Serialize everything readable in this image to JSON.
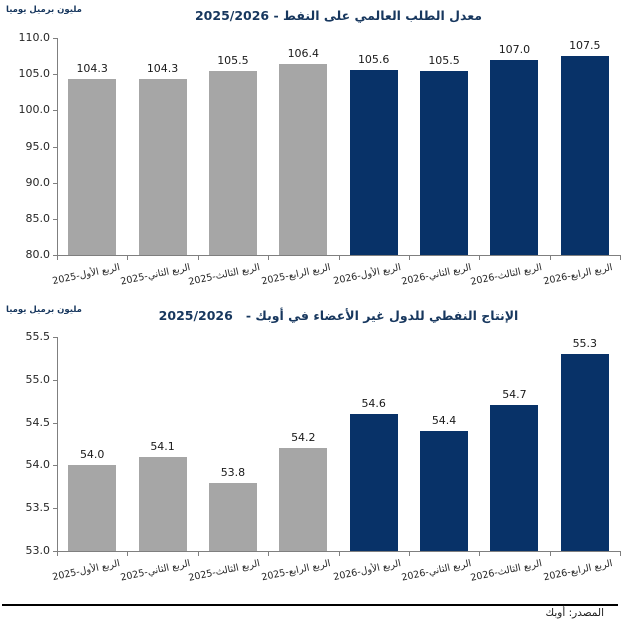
{
  "source": "المصدر: أوبك",
  "colors": {
    "gray_bar": "#A6A6A6",
    "navy_bar": "#083268",
    "title_navy": "#17375E",
    "axis_gray": "#7f7f7f",
    "label_black": "#1a1a1a"
  },
  "chart_data": [
    {
      "type": "bar",
      "title": "معدل الطلب العالمي على النفط - 2025/2026",
      "ylabel": "مليون برميل يوميا",
      "ylim": [
        80.0,
        110.0
      ],
      "ytick_labels": [
        "110.0",
        "105.0",
        "100.0",
        "95.0",
        "90.0",
        "85.0",
        "80.0"
      ],
      "grid": false,
      "legend": "none",
      "categories": [
        "الربع الأول-2025",
        "الربع الثاني-2025",
        "الربع الثالث-2025",
        "الربع الرابع-2025",
        "الربع الأول-2026",
        "الربع الثاني-2026",
        "الربع الثالث-2026",
        "الربع الرابع-2026"
      ],
      "values": [
        104.3,
        104.3,
        105.5,
        106.4,
        105.6,
        105.5,
        107.0,
        107.5
      ],
      "value_labels": [
        "104.3",
        "104.3",
        "105.5",
        "106.4",
        "105.6",
        "105.5",
        "107.0",
        "107.5"
      ],
      "bar_color_keys": [
        "gray_bar",
        "gray_bar",
        "gray_bar",
        "gray_bar",
        "navy_bar",
        "navy_bar",
        "navy_bar",
        "navy_bar"
      ]
    },
    {
      "type": "bar",
      "title": "الإنتاج النفطي للدول غير الأعضاء في أوبك -   2025/2026",
      "ylabel": "مليون برميل يوميا",
      "ylim": [
        53.0,
        55.5
      ],
      "ytick_labels": [
        "55.5",
        "55.0",
        "54.5",
        "54.0",
        "53.5",
        "53.0"
      ],
      "grid": false,
      "legend": "none",
      "categories": [
        "الربع الأول-2025",
        "الربع الثاني-2025",
        "الربع الثالث-2025",
        "الربع الرابع-2025",
        "الربع الأول-2026",
        "الربع الثاني-2026",
        "الربع الثالث-2026",
        "الربع الرابع-2026"
      ],
      "values": [
        54.0,
        54.1,
        53.8,
        54.2,
        54.6,
        54.4,
        54.7,
        55.3
      ],
      "value_labels": [
        "54.0",
        "54.1",
        "53.8",
        "54.2",
        "54.6",
        "54.4",
        "54.7",
        "55.3"
      ],
      "bar_color_keys": [
        "gray_bar",
        "gray_bar",
        "gray_bar",
        "gray_bar",
        "navy_bar",
        "navy_bar",
        "navy_bar",
        "navy_bar"
      ]
    }
  ]
}
